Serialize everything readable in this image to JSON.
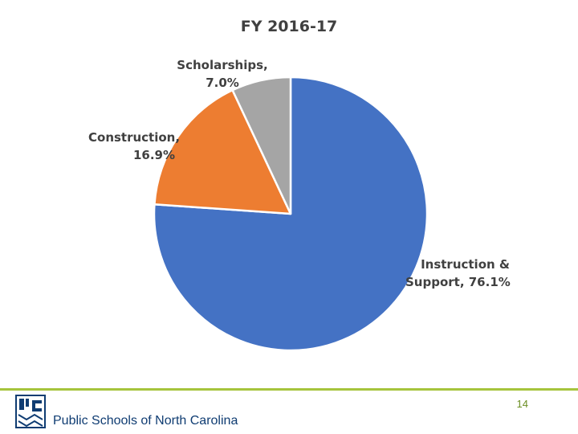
{
  "chart_data": {
    "type": "pie",
    "title": "FY 2016-17",
    "start_angle_deg": 0,
    "direction": "clockwise",
    "slices": [
      {
        "name": "Instruction & Support",
        "value": 76.1,
        "label_line1": "Instruction &",
        "label_line2": "Support, 76.1%",
        "color": "#4472c4"
      },
      {
        "name": "Construction",
        "value": 16.9,
        "label_line1": "Construction,",
        "label_line2": "16.9%",
        "color": "#ed7d31"
      },
      {
        "name": "Scholarships",
        "value": 7.0,
        "label_line1": "Scholarships,",
        "label_line2": "7.0%",
        "color": "#a5a5a5"
      }
    ]
  },
  "footer": {
    "page_number": "14",
    "org_name": "Public Schools of North Carolina",
    "rule_color": "#a6c43c",
    "page_number_color": "#6b8e23",
    "brand_color": "#0f3c72"
  }
}
